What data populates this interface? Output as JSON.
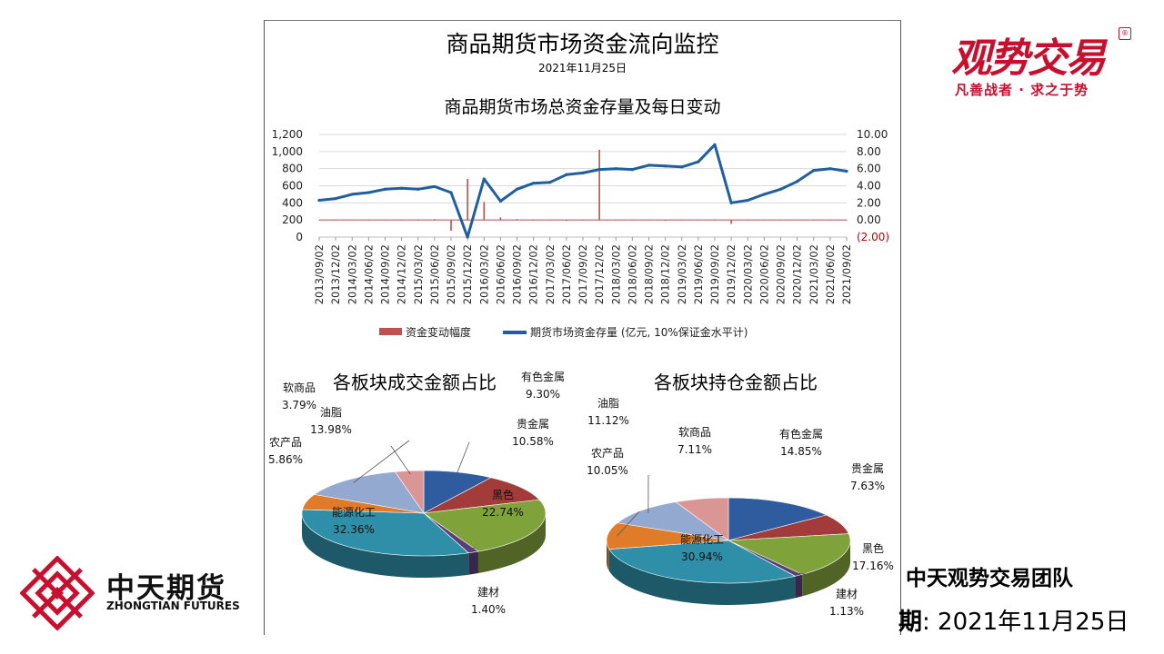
{
  "title": "商品期货市场资金流向监控",
  "date": "2021年11月25日",
  "brand": {
    "name": "观势交易",
    "mark": "®",
    "slogan": "凡善战者 · 求之于势",
    "color": "#c8102e"
  },
  "footer": {
    "company_cn": "中天期货",
    "company_en": "ZHONGTIAN FUTURES",
    "team": "中天观势交易团队",
    "date_label": "期",
    "date_sep": ":",
    "date_value": "2021年11月25日"
  },
  "chart_data": [
    {
      "type": "line",
      "title": "商品期货市场总资金存量及每日变动",
      "x": [
        "2013/09/02",
        "2013/12/02",
        "2014/03/02",
        "2014/06/02",
        "2014/09/02",
        "2014/12/02",
        "2015/03/02",
        "2015/06/02",
        "2015/09/02",
        "2015/12/02",
        "2016/03/02",
        "2016/06/02",
        "2016/09/02",
        "2016/12/02",
        "2017/03/02",
        "2017/06/02",
        "2017/09/02",
        "2017/12/02",
        "2018/03/02",
        "2018/06/02",
        "2018/09/02",
        "2018/12/02",
        "2019/03/02",
        "2019/06/02",
        "2019/09/02",
        "2019/12/02",
        "2020/03/02",
        "2020/06/02",
        "2020/09/02",
        "2020/12/02",
        "2021/03/02",
        "2021/06/02",
        "2021/09/02"
      ],
      "y_left_ticks": [
        "0",
        "200",
        "400",
        "600",
        "800",
        "1,000",
        "1,200"
      ],
      "y_right_ticks": [
        "(2.00)",
        "0.00",
        "2.00",
        "4.00",
        "6.00",
        "8.00",
        "10.00"
      ],
      "ylim_left": [
        0,
        1200
      ],
      "ylim_right": [
        -2,
        10
      ],
      "grid": true,
      "legend_position": "bottom",
      "series": [
        {
          "name": "期货市场资金存量 (亿元, 10%保证金水平计)",
          "color": "#1f5fa0",
          "axis": "left",
          "values": [
            430,
            450,
            500,
            520,
            560,
            570,
            560,
            590,
            520,
            0,
            680,
            420,
            560,
            630,
            640,
            730,
            750,
            790,
            800,
            790,
            840,
            830,
            820,
            880,
            1080,
            400,
            430,
            500,
            560,
            650,
            780,
            800,
            770
          ]
        },
        {
          "name": "资金变动幅度",
          "color": "#c0504d",
          "axis": "right",
          "values": [
            0,
            0.02,
            0,
            -0.02,
            0.03,
            0,
            0.05,
            0.1,
            -1.2,
            4.8,
            2.1,
            0.3,
            0.1,
            0.05,
            0.02,
            -0.05,
            0.06,
            8.2,
            0.02,
            0,
            0.01,
            -0.03,
            0.02,
            0.03,
            0.05,
            -0.4,
            0.02,
            0.01,
            0.02,
            0,
            0.03,
            0.01,
            0.02
          ]
        }
      ]
    },
    {
      "type": "pie",
      "title": "各板块成交金额占比",
      "categories": [
        "有色金属",
        "贵金属",
        "黑色",
        "建材",
        "能源化工",
        "农产品",
        "油脂",
        "软商品"
      ],
      "values": [
        9.3,
        10.58,
        22.74,
        1.4,
        32.36,
        5.86,
        13.98,
        3.79
      ],
      "labels": [
        "9.30%",
        "10.58%",
        "22.74%",
        "1.40%",
        "32.36%",
        "5.86%",
        "13.98%",
        "3.79%"
      ],
      "colors": [
        "#2e5c9f",
        "#a23c3a",
        "#7fa23b",
        "#5a3e7a",
        "#2f8fa8",
        "#e07b2a",
        "#93a9cf",
        "#d99694"
      ]
    },
    {
      "type": "pie",
      "title": "各板块持仓金额占比",
      "categories": [
        "有色金属",
        "贵金属",
        "黑色",
        "建材",
        "能源化工",
        "农产品",
        "油脂",
        "软商品"
      ],
      "values": [
        14.85,
        7.63,
        17.16,
        1.13,
        30.94,
        10.05,
        11.12,
        7.11
      ],
      "labels": [
        "14.85%",
        "7.63%",
        "17.16%",
        "1.13%",
        "30.94%",
        "10.05%",
        "11.12%",
        "7.11%"
      ],
      "colors": [
        "#2e5c9f",
        "#a23c3a",
        "#7fa23b",
        "#5a3e7a",
        "#2f8fa8",
        "#e07b2a",
        "#93a9cf",
        "#d99694"
      ]
    }
  ]
}
